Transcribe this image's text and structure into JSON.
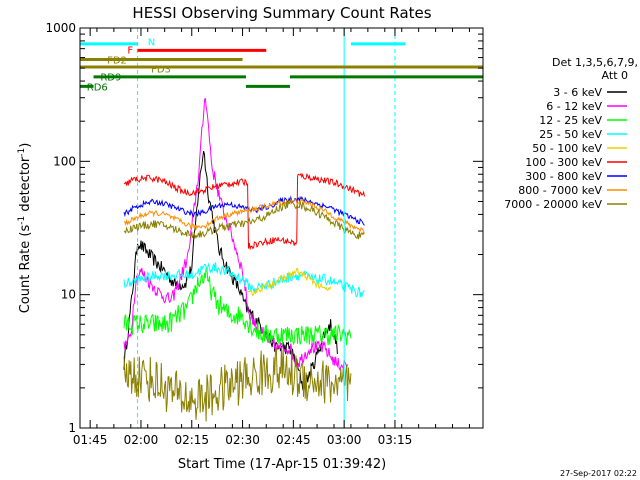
{
  "chart_data": {
    "type": "line",
    "title": "HESSI Observing Summary Count Rates",
    "xlabel": "Start Time (17-Apr-15 01:39:42)",
    "ylabel_parts": [
      "Count Rate (s",
      "-1",
      " detector",
      "-1",
      ")"
    ],
    "yscale": "log",
    "ylim": [
      1,
      1000
    ],
    "y_ticks": [
      {
        "v": 1,
        "label": "1"
      },
      {
        "v": 10,
        "label": "10"
      },
      {
        "v": 100,
        "label": "100"
      },
      {
        "v": 1000,
        "label": "1000"
      }
    ],
    "x_range_min": [
      102,
      221
    ],
    "x_ticks": [
      {
        "v": 105,
        "label": "01:45"
      },
      {
        "v": 120,
        "label": "02:00"
      },
      {
        "v": 135,
        "label": "02:15"
      },
      {
        "v": 150,
        "label": "02:30"
      },
      {
        "v": 165,
        "label": "02:45"
      },
      {
        "v": 180,
        "label": "03:00"
      },
      {
        "v": 195,
        "label": "03:15"
      }
    ],
    "legend_header": [
      "Det 1,3,5,6,7,9,",
      "Att 0"
    ],
    "legend": [
      {
        "label": "3 - 6 keV",
        "color": "#000000"
      },
      {
        "label": "6 - 12 keV",
        "color": "#ff00ff"
      },
      {
        "label": "12 - 25 keV",
        "color": "#00ff00"
      },
      {
        "label": "25 - 50 keV",
        "color": "#00ffff"
      },
      {
        "label": "50 - 100 keV",
        "color": "#e6d200"
      },
      {
        "label": "100 - 300 keV",
        "color": "#ff0000"
      },
      {
        "label": "300 - 800 keV",
        "color": "#0000ff"
      },
      {
        "label": "800 - 7000 keV",
        "color": "#ff8c00"
      },
      {
        "label": "7000 - 20000 keV",
        "color": "#8b8000"
      }
    ],
    "flag_bars": [
      {
        "label": "N",
        "color": "#00ffff",
        "level": 760,
        "segments": [
          [
            102,
            119
          ],
          [
            182,
            198
          ]
        ]
      },
      {
        "label": "F",
        "color": "#ff0000",
        "level": 680,
        "segments": [
          [
            119,
            157
          ]
        ]
      },
      {
        "label": "FD2",
        "color": "#8b8000",
        "level": 580,
        "segments": [
          [
            102,
            150
          ]
        ]
      },
      {
        "label": "FD3",
        "color": "#8b8000",
        "level": 510,
        "segments": [
          [
            102,
            221
          ]
        ]
      },
      {
        "label": "RD9",
        "color": "#007800",
        "level": 430,
        "segments": [
          [
            106,
            151
          ],
          [
            164,
            221
          ]
        ]
      },
      {
        "label": "RD6",
        "color": "#007800",
        "level": 365,
        "segments": [
          [
            102,
            106
          ],
          [
            151,
            164
          ]
        ]
      }
    ],
    "flag_label_anchors": [
      {
        "label": "N",
        "x": 122,
        "level": 790
      },
      {
        "label": "F",
        "x": 116,
        "level": 690
      },
      {
        "label": "FD2",
        "x": 110,
        "level": 580
      },
      {
        "label": "FD3",
        "x": 123,
        "level": 495
      },
      {
        "label": "RD9",
        "x": 108,
        "level": 432
      },
      {
        "label": "RD6",
        "x": 104,
        "level": 365
      }
    ],
    "vertical_markers": [
      {
        "x": 102,
        "color": "#00ffff",
        "dashed": false
      },
      {
        "x": 119,
        "color": "#00ffff",
        "dashed": true
      },
      {
        "x": 180,
        "color": "#00ffff",
        "dashed": false
      },
      {
        "x": 195,
        "color": "#00ffff",
        "dashed": true
      }
    ],
    "series": [
      {
        "name": "3 - 6 keV",
        "color": "#000000",
        "jitter": 0.05,
        "points": [
          [
            115,
            3
          ],
          [
            117,
            8
          ],
          [
            119,
            25
          ],
          [
            121,
            22
          ],
          [
            124,
            18
          ],
          [
            127,
            15
          ],
          [
            130,
            12
          ],
          [
            133,
            12
          ],
          [
            135,
            16
          ],
          [
            137,
            60
          ],
          [
            138.5,
            125
          ],
          [
            140,
            55
          ],
          [
            143,
            22
          ],
          [
            146,
            15
          ],
          [
            149,
            11
          ],
          [
            151,
            8
          ],
          [
            155,
            6
          ],
          [
            160,
            4
          ],
          [
            164,
            4
          ],
          [
            166,
            3
          ],
          [
            168,
            2
          ],
          [
            171,
            3
          ],
          [
            174,
            5
          ],
          [
            176,
            6
          ],
          [
            178,
            4
          ]
        ]
      },
      {
        "name": "6 - 12 keV",
        "color": "#ff00ff",
        "jitter": 0.05,
        "points": [
          [
            115,
            4
          ],
          [
            117,
            5
          ],
          [
            118.5,
            13
          ],
          [
            120,
            15
          ],
          [
            123,
            12
          ],
          [
            126,
            10
          ],
          [
            129,
            9
          ],
          [
            132,
            14
          ],
          [
            134,
            20
          ],
          [
            137,
            80
          ],
          [
            139,
            330
          ],
          [
            141,
            90
          ],
          [
            144,
            45
          ],
          [
            147,
            27
          ],
          [
            150,
            15
          ],
          [
            152,
            7
          ],
          [
            156,
            5
          ],
          [
            160,
            4
          ],
          [
            164,
            4
          ],
          [
            166,
            3
          ],
          [
            170,
            4
          ],
          [
            174,
            4
          ],
          [
            178,
            3
          ],
          [
            181,
            3
          ]
        ]
      },
      {
        "name": "12 - 25 keV",
        "color": "#00ff00",
        "jitter": 0.08,
        "points": [
          [
            115,
            6
          ],
          [
            120,
            6
          ],
          [
            124,
            6
          ],
          [
            128,
            6
          ],
          [
            131,
            7
          ],
          [
            134,
            8
          ],
          [
            136.5,
            12
          ],
          [
            139,
            14
          ],
          [
            142,
            9
          ],
          [
            146,
            7
          ],
          [
            150,
            7
          ],
          [
            152,
            6
          ],
          [
            156,
            5
          ],
          [
            160,
            5
          ],
          [
            164,
            5
          ],
          [
            168,
            5
          ],
          [
            172,
            5
          ],
          [
            176,
            5
          ],
          [
            180,
            5
          ],
          [
            182,
            5
          ]
        ]
      },
      {
        "name": "25 - 50 keV",
        "color": "#00ffff",
        "jitter": 0.04,
        "points": [
          [
            115,
            12
          ],
          [
            120,
            13
          ],
          [
            125,
            14
          ],
          [
            130,
            14
          ],
          [
            135,
            14
          ],
          [
            139,
            16
          ],
          [
            142,
            16
          ],
          [
            145,
            15
          ],
          [
            150,
            13
          ],
          [
            153,
            11
          ],
          [
            158,
            12
          ],
          [
            162,
            13
          ],
          [
            165,
            14
          ],
          [
            168,
            14
          ],
          [
            171,
            13
          ],
          [
            175,
            13
          ],
          [
            178,
            12
          ],
          [
            182,
            11
          ],
          [
            186,
            10
          ]
        ]
      },
      {
        "name": "50 - 100 keV",
        "color": "#e6d200",
        "jitter": 0.025,
        "points": [
          [
            151.5,
            10
          ],
          [
            155,
            11
          ],
          [
            158,
            12
          ],
          [
            161,
            13
          ],
          [
            164,
            14
          ],
          [
            166,
            15
          ],
          [
            168,
            14
          ],
          [
            170,
            13
          ],
          [
            172,
            12
          ],
          [
            174,
            11
          ],
          [
            176,
            11
          ]
        ]
      },
      {
        "name": "100 - 300 keV",
        "color": "#ff0000",
        "jitter": 0.025,
        "points": [
          [
            115,
            65
          ],
          [
            117,
            72
          ],
          [
            120,
            74
          ],
          [
            123,
            75
          ],
          [
            126,
            72
          ],
          [
            129,
            66
          ],
          [
            132,
            60
          ],
          [
            135,
            58
          ],
          [
            138,
            60
          ],
          [
            142,
            65
          ],
          [
            146,
            68
          ],
          [
            150,
            70
          ],
          [
            151.5,
            70
          ],
          [
            151.6,
            23
          ],
          [
            154,
            24
          ],
          [
            157,
            25
          ],
          [
            160,
            26
          ],
          [
            164,
            25
          ],
          [
            166,
            24
          ],
          [
            166.1,
            78
          ],
          [
            170,
            76
          ],
          [
            174,
            72
          ],
          [
            178,
            68
          ],
          [
            182,
            62
          ],
          [
            186,
            55
          ]
        ]
      },
      {
        "name": "300 - 800 keV",
        "color": "#0000ff",
        "jitter": 0.02,
        "points": [
          [
            115,
            40
          ],
          [
            118,
            45
          ],
          [
            121,
            48
          ],
          [
            124,
            50
          ],
          [
            127,
            48
          ],
          [
            130,
            45
          ],
          [
            133,
            42
          ],
          [
            136,
            40
          ],
          [
            139,
            42
          ],
          [
            142,
            46
          ],
          [
            146,
            48
          ],
          [
            150,
            45
          ],
          [
            154,
            43
          ],
          [
            158,
            46
          ],
          [
            161,
            50
          ],
          [
            164,
            52
          ],
          [
            167,
            52
          ],
          [
            170,
            50
          ],
          [
            173,
            47
          ],
          [
            176,
            45
          ],
          [
            179,
            41
          ],
          [
            182,
            38
          ],
          [
            186,
            34
          ]
        ]
      },
      {
        "name": "800 - 7000 keV",
        "color": "#ff8c00",
        "jitter": 0.02,
        "points": [
          [
            115,
            34
          ],
          [
            118,
            37
          ],
          [
            121,
            40
          ],
          [
            124,
            41
          ],
          [
            127,
            40
          ],
          [
            130,
            37
          ],
          [
            133,
            34
          ],
          [
            136,
            32
          ],
          [
            139,
            33
          ],
          [
            142,
            37
          ],
          [
            146,
            40
          ],
          [
            150,
            42
          ],
          [
            154,
            44
          ],
          [
            158,
            47
          ],
          [
            161,
            49
          ],
          [
            164,
            50
          ],
          [
            167,
            50
          ],
          [
            170,
            48
          ],
          [
            173,
            44
          ],
          [
            176,
            40
          ],
          [
            179,
            36
          ],
          [
            182,
            33
          ],
          [
            186,
            30
          ]
        ]
      },
      {
        "name": "7000 - 20000 keV",
        "color": "#8b8000",
        "jitter": 0.03,
        "points": [
          [
            115,
            30
          ],
          [
            118,
            32
          ],
          [
            121,
            33
          ],
          [
            124,
            34
          ],
          [
            127,
            33
          ],
          [
            130,
            31
          ],
          [
            133,
            29
          ],
          [
            136,
            28
          ],
          [
            139,
            29
          ],
          [
            142,
            31
          ],
          [
            146,
            33
          ],
          [
            150,
            34
          ],
          [
            154,
            36
          ],
          [
            158,
            40
          ],
          [
            161,
            45
          ],
          [
            164,
            48
          ],
          [
            167,
            47
          ],
          [
            170,
            44
          ],
          [
            173,
            40
          ],
          [
            176,
            36
          ],
          [
            179,
            32
          ],
          [
            182,
            29
          ],
          [
            186,
            27
          ]
        ]
      },
      {
        "name": "7000 - 20000 keV (low band)",
        "color": "#8b8000",
        "jitter": 0.18,
        "points": [
          [
            115,
            2.5
          ],
          [
            120,
            2.5
          ],
          [
            125,
            2.2
          ],
          [
            130,
            1.8
          ],
          [
            135,
            1.6
          ],
          [
            140,
            1.7
          ],
          [
            145,
            2.0
          ],
          [
            150,
            2.3
          ],
          [
            155,
            2.5
          ],
          [
            160,
            2.8
          ],
          [
            165,
            2.5
          ],
          [
            170,
            2.3
          ],
          [
            175,
            2.2
          ],
          [
            180,
            2.0
          ],
          [
            182,
            2.0
          ]
        ]
      }
    ]
  },
  "footer_date": "27-Sep-2017 02:22"
}
